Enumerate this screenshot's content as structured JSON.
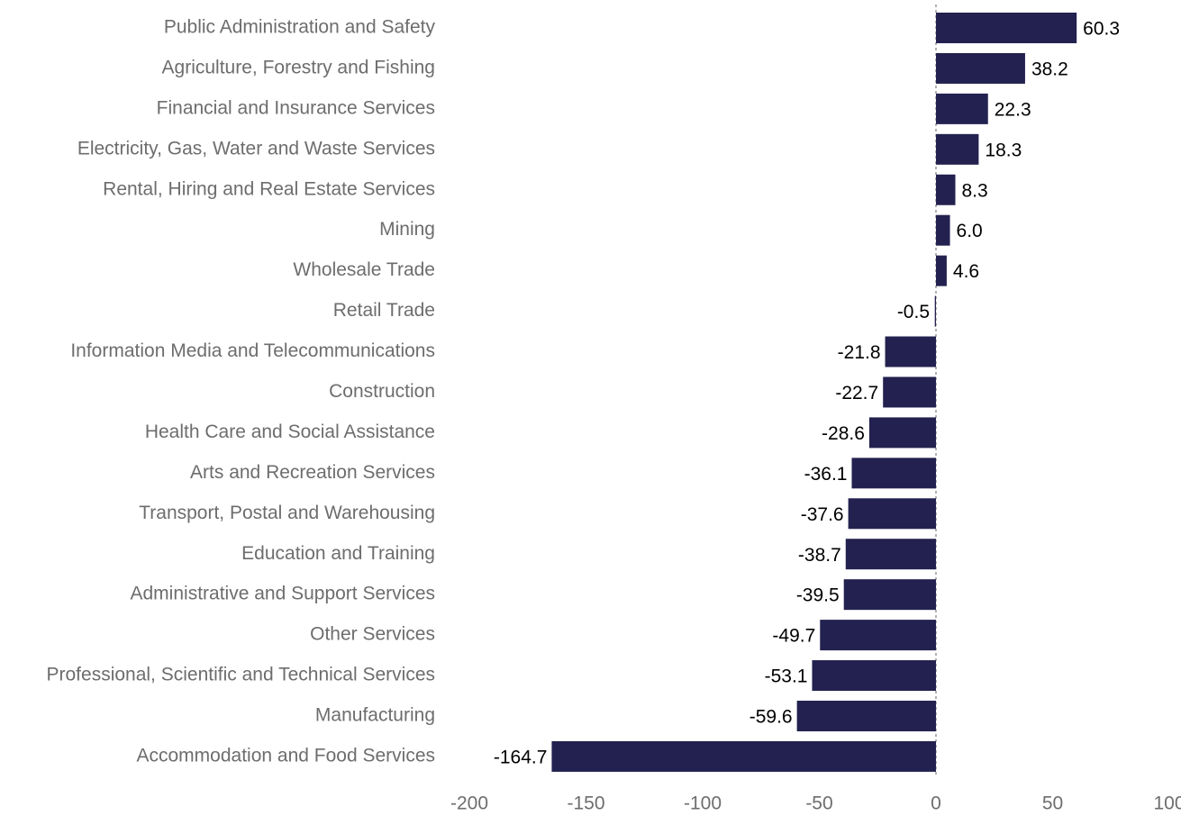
{
  "chart_data": {
    "type": "barh",
    "categories": [
      "Public Administration and Safety",
      "Agriculture, Forestry and Fishing",
      "Financial and Insurance Services",
      "Electricity, Gas, Water and Waste Services",
      "Rental, Hiring and Real Estate Services",
      "Mining",
      "Wholesale Trade",
      "Retail Trade",
      "Information Media and Telecommunications",
      "Construction",
      "Health Care and Social Assistance",
      "Arts and Recreation Services",
      "Transport, Postal and Warehousing",
      "Education and Training",
      "Administrative and Support Services",
      "Other Services",
      "Professional, Scientific and Technical Services",
      "Manufacturing",
      "Accommodation and Food Services"
    ],
    "values": [
      60.3,
      38.2,
      22.3,
      18.3,
      8.3,
      6.0,
      4.6,
      -0.5,
      -21.8,
      -22.7,
      -28.6,
      -36.1,
      -37.6,
      -38.7,
      -39.5,
      -49.7,
      -53.1,
      -59.6,
      -164.7
    ],
    "value_labels": [
      "60.3",
      "38.2",
      "22.3",
      "18.3",
      "8.3",
      "6.0",
      "4.6",
      "-0.5",
      "-21.8",
      "-22.7",
      "-28.6",
      "-36.1",
      "-37.6",
      "-38.7",
      "-39.5",
      "-49.7",
      "-53.1",
      "-59.6",
      "-164.7"
    ],
    "color": "#23214f",
    "xlim": [
      -200,
      100
    ],
    "xticks": [
      -200,
      -150,
      -100,
      -50,
      0,
      50,
      100
    ]
  }
}
